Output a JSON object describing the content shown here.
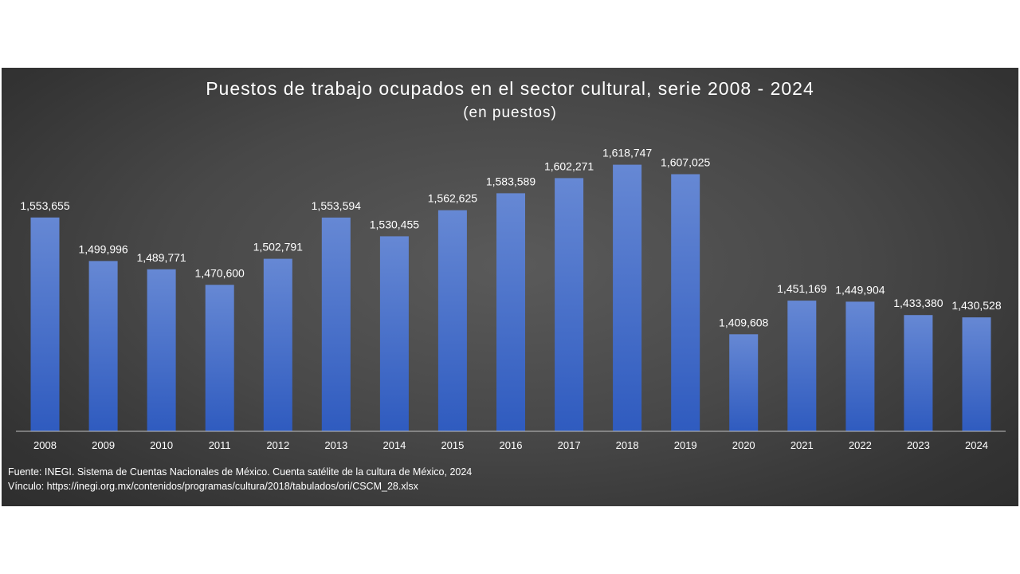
{
  "chart_data": {
    "type": "bar",
    "title": "Puestos de trabajo ocupados en el sector cultural, serie 2008 - 2024",
    "subtitle": "(en puestos)",
    "categories": [
      "2008",
      "2009",
      "2010",
      "2011",
      "2012",
      "2013",
      "2014",
      "2015",
      "2016",
      "2017",
      "2018",
      "2019",
      "2020",
      "2021",
      "2022",
      "2023",
      "2024"
    ],
    "values": [
      1553655,
      1499996,
      1489771,
      1470600,
      1502791,
      1553594,
      1530455,
      1562625,
      1583589,
      1602271,
      1618747,
      1607025,
      1409608,
      1451169,
      1449904,
      1433380,
      1430528
    ],
    "data_labels": [
      "1,553,655",
      "1,499,996",
      "1,489,771",
      "1,470,600",
      "1,502,791",
      "1,553,594",
      "1,530,455",
      "1,562,625",
      "1,583,589",
      "1,602,271",
      "1,618,747",
      "1,607,025",
      "1,409,608",
      "1,451,169",
      "1,449,904",
      "1,433,380",
      "1,430,528"
    ],
    "xlabel": "",
    "ylabel": "",
    "ylim": [
      1290000,
      1640000
    ],
    "y_axis_visible": false,
    "grid": false,
    "legend": "none",
    "colors": {
      "bar_top": "#6688d4",
      "bar_bottom": "#2f5bbf",
      "background": "#444444",
      "text": "#ffffff"
    }
  },
  "footer": {
    "source": "Fuente: INEGI. Sistema de Cuentas Nacionales de México. Cuenta satélite de la cultura de México, 2024",
    "link": "Vínculo: https://inegi.org.mx/contenidos/programas/cultura/2018/tabulados/ori/CSCM_28.xlsx"
  }
}
